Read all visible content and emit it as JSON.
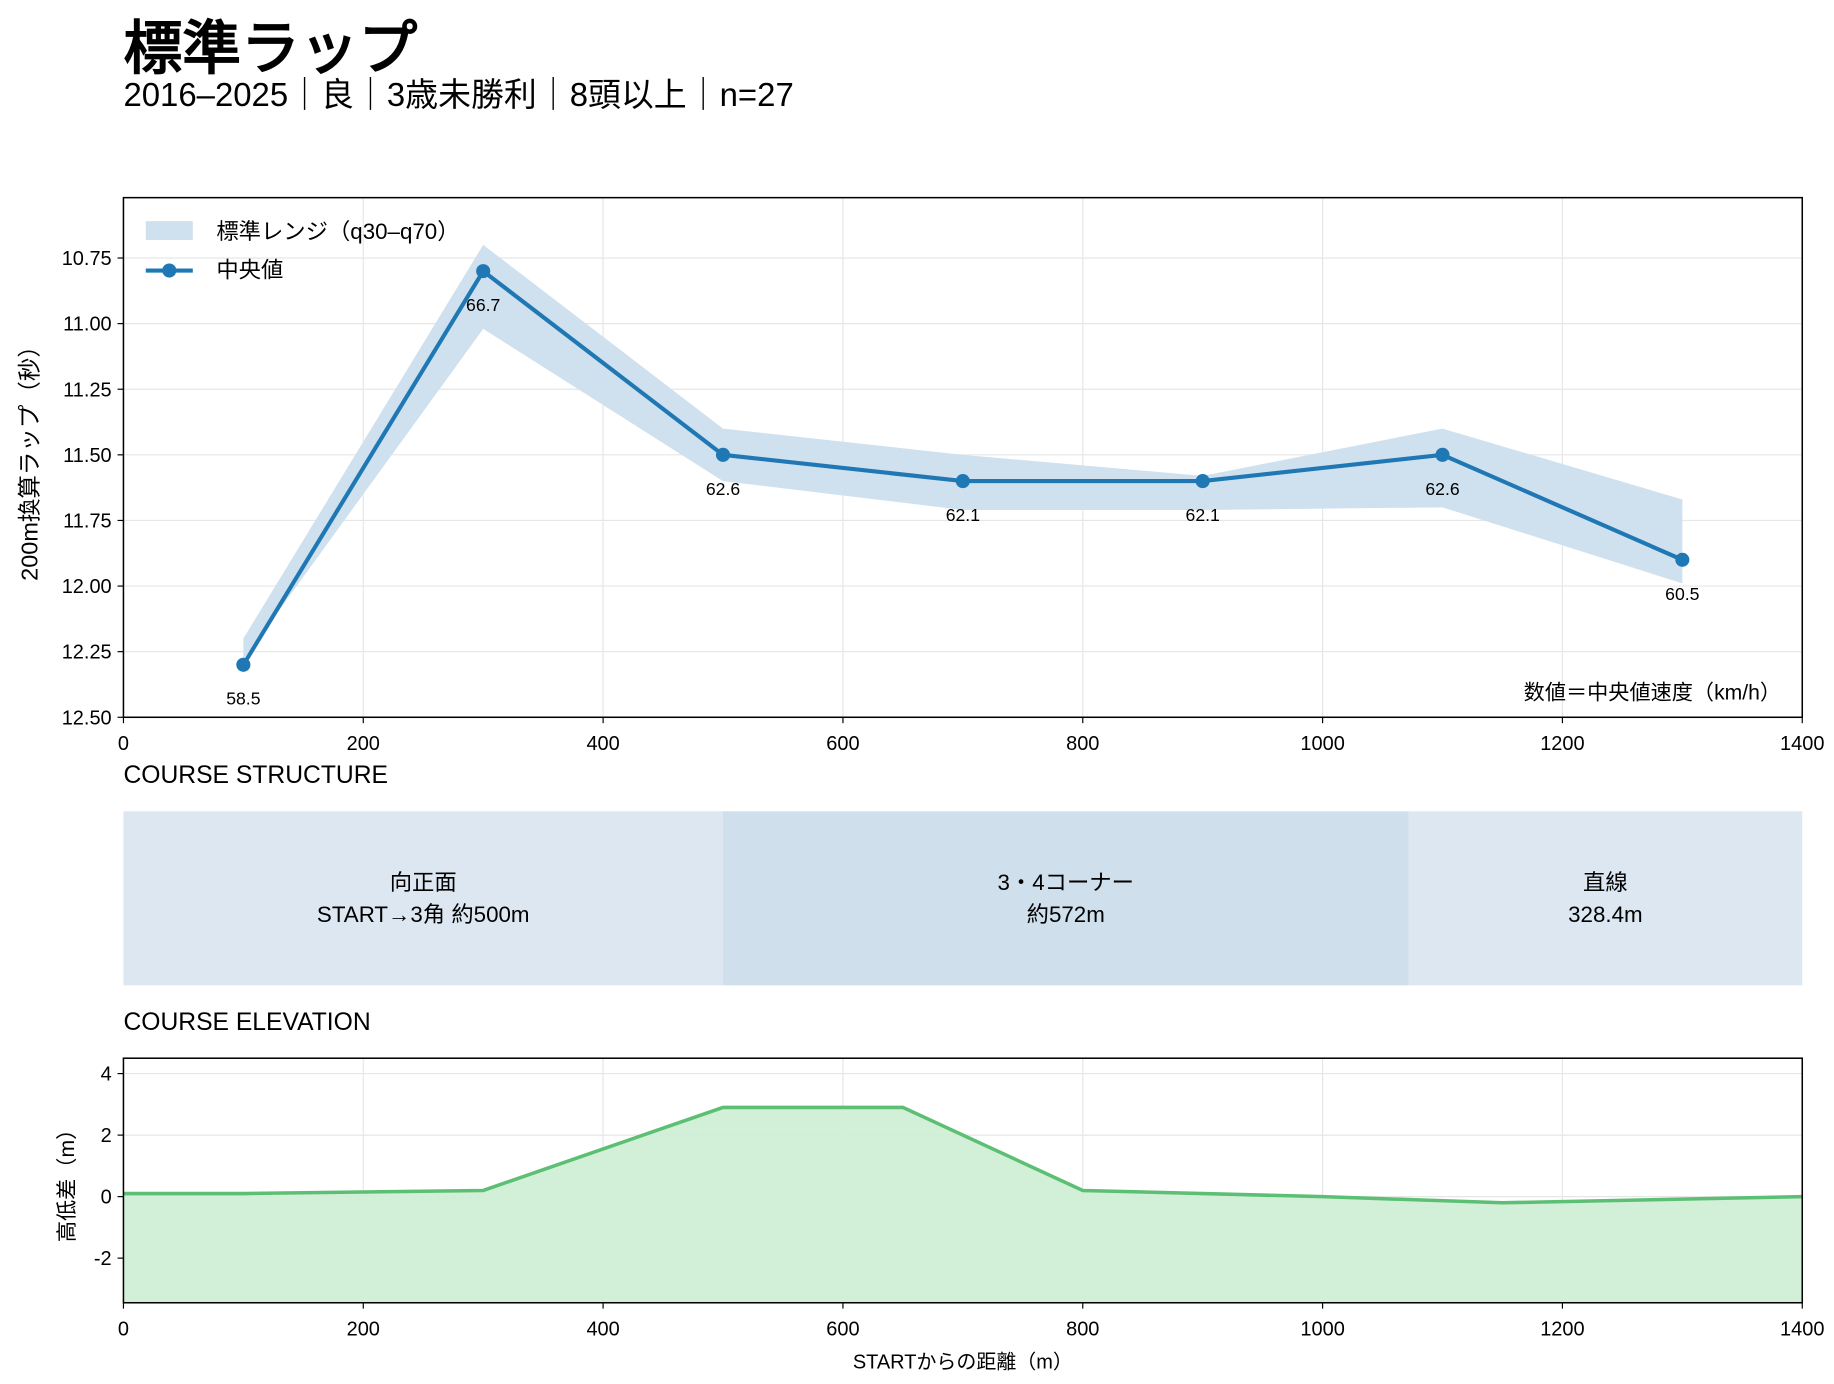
{
  "title": "標準ラップ",
  "subtitle": "2016–2025｜良｜3歳未勝利｜8頭以上｜n=27",
  "chart_data": [
    {
      "type": "line",
      "ylabel": "200m換算ラップ（秒）",
      "annotation": "数値＝中央値速度（km/h）",
      "x": [
        100,
        300,
        500,
        700,
        900,
        1100,
        1300
      ],
      "series": [
        {
          "name": "標準レンジ（q30–q70）",
          "color": "#cfe0ee",
          "kind": "band",
          "low": [
            12.2,
            10.7,
            11.4,
            11.5,
            11.58,
            11.4,
            11.67
          ],
          "high": [
            12.28,
            11.02,
            11.6,
            11.71,
            11.71,
            11.7,
            11.99
          ]
        },
        {
          "name": "中央値",
          "color": "#1f77b4",
          "kind": "line",
          "values": [
            12.3,
            10.8,
            11.5,
            11.6,
            11.6,
            11.5,
            11.9
          ],
          "data_labels": [
            58.5,
            66.7,
            62.6,
            62.1,
            62.1,
            62.6,
            60.5
          ]
        }
      ],
      "xlim": [
        0,
        1400
      ],
      "xticks": [
        0,
        200,
        400,
        600,
        800,
        1000,
        1200,
        1400
      ],
      "ylim": [
        10.52,
        12.5
      ],
      "y_inverted": true,
      "yticks": [
        10.75,
        {
          "value": 11,
          "label": "11.00"
        },
        11.25,
        {
          "value": 11.5,
          "label": "11.50"
        },
        11.75,
        {
          "value": 12,
          "label": "12.00"
        },
        12.25,
        {
          "value": 12.5,
          "label": "12.50"
        }
      ],
      "grid": true,
      "legend": "upper left"
    },
    {
      "type": "segments",
      "title": "COURSE STRUCTURE",
      "xlim": [
        0,
        1400
      ],
      "segments": [
        {
          "name": "向正面",
          "label": "START→3角 約500m",
          "start": 0,
          "end": 500,
          "color": "#dce7f1"
        },
        {
          "name": "3・4コーナー",
          "label": "約572m",
          "start": 500,
          "end": 1071.6,
          "color": "#cfdfeb"
        },
        {
          "name": "直線",
          "label": "328.4m",
          "start": 1071.6,
          "end": 1400,
          "color": "#dce7f1"
        }
      ]
    },
    {
      "type": "area",
      "title": "COURSE ELEVATION",
      "xlabel": "STARTからの距離（m）",
      "ylabel": "高低差（m）",
      "x": [
        0,
        100,
        300,
        500,
        650,
        800,
        1000,
        1150,
        1400
      ],
      "values": [
        0.1,
        0.1,
        0.2,
        2.9,
        2.9,
        0.2,
        0,
        -0.2,
        0
      ],
      "color": "#5cbf73",
      "fill": "#d0eed6",
      "xlim": [
        0,
        1400
      ],
      "xticks": [
        0,
        200,
        400,
        600,
        800,
        1000,
        1200,
        1400
      ],
      "ylim": [
        -3.45,
        4.5
      ],
      "yticks": [
        -2,
        0,
        2,
        4
      ],
      "grid": true
    }
  ]
}
